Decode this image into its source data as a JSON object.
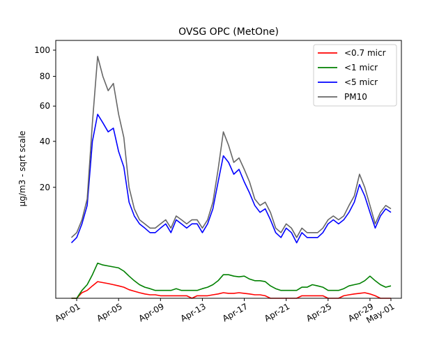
{
  "chart_data": {
    "type": "line",
    "title": "OVSG OPC (MetOne)",
    "xlabel": "",
    "ylabel": "µg/m3 - sqrt scale",
    "y_scale": "sqrt",
    "xlim": [
      "2024-03-30",
      "2024-05-02"
    ],
    "ylim": [
      0,
      108
    ],
    "x_ticks": [
      {
        "date": "2024-04-01",
        "label": "Apr-01"
      },
      {
        "date": "2024-04-05",
        "label": "Apr-05"
      },
      {
        "date": "2024-04-09",
        "label": "Apr-09"
      },
      {
        "date": "2024-04-13",
        "label": "Apr-13"
      },
      {
        "date": "2024-04-17",
        "label": "Apr-17"
      },
      {
        "date": "2024-04-21",
        "label": "Apr-21"
      },
      {
        "date": "2024-04-25",
        "label": "Apr-25"
      },
      {
        "date": "2024-04-29",
        "label": "Apr-29"
      },
      {
        "date": "2024-05-01",
        "label": "May-01"
      }
    ],
    "y_ticks": [
      20,
      40,
      60,
      80,
      100
    ],
    "legend": {
      "placement": "top-right"
    },
    "grid": false,
    "x": [
      "2024-03-31 12:00",
      "2024-04-01 00:00",
      "2024-04-01 12:00",
      "2024-04-02 00:00",
      "2024-04-02 12:00",
      "2024-04-03 00:00",
      "2024-04-03 12:00",
      "2024-04-04 00:00",
      "2024-04-04 12:00",
      "2024-04-05 00:00",
      "2024-04-05 12:00",
      "2024-04-06 00:00",
      "2024-04-06 12:00",
      "2024-04-07 00:00",
      "2024-04-07 12:00",
      "2024-04-08 00:00",
      "2024-04-08 12:00",
      "2024-04-09 00:00",
      "2024-04-09 12:00",
      "2024-04-10 00:00",
      "2024-04-10 12:00",
      "2024-04-11 00:00",
      "2024-04-11 12:00",
      "2024-04-12 00:00",
      "2024-04-12 12:00",
      "2024-04-13 00:00",
      "2024-04-13 12:00",
      "2024-04-14 00:00",
      "2024-04-14 12:00",
      "2024-04-15 00:00",
      "2024-04-15 12:00",
      "2024-04-16 00:00",
      "2024-04-16 12:00",
      "2024-04-17 00:00",
      "2024-04-17 12:00",
      "2024-04-18 00:00",
      "2024-04-18 12:00",
      "2024-04-19 00:00",
      "2024-04-19 12:00",
      "2024-04-20 00:00",
      "2024-04-20 12:00",
      "2024-04-21 00:00",
      "2024-04-21 12:00",
      "2024-04-22 00:00",
      "2024-04-22 12:00",
      "2024-04-23 00:00",
      "2024-04-23 12:00",
      "2024-04-24 00:00",
      "2024-04-24 12:00",
      "2024-04-25 00:00",
      "2024-04-25 12:00",
      "2024-04-26 00:00",
      "2024-04-26 12:00",
      "2024-04-27 00:00",
      "2024-04-27 12:00",
      "2024-04-28 00:00",
      "2024-04-28 12:00",
      "2024-04-29 00:00",
      "2024-04-29 12:00",
      "2024-04-30 00:00",
      "2024-04-30 12:00",
      "2024-05-01 00:00"
    ],
    "series": [
      {
        "name": "<0.7 micr",
        "color": "#ff0000",
        "values": [
          0.0,
          0.0,
          0.05,
          0.1,
          0.25,
          0.45,
          0.4,
          0.35,
          0.3,
          0.25,
          0.2,
          0.12,
          0.08,
          0.05,
          0.03,
          0.02,
          0.02,
          0.01,
          0.01,
          0.01,
          0.01,
          0.01,
          0.01,
          0.0,
          0.01,
          0.01,
          0.01,
          0.02,
          0.03,
          0.05,
          0.04,
          0.04,
          0.05,
          0.04,
          0.03,
          0.02,
          0.02,
          0.01,
          0.0,
          0.0,
          0.0,
          0.0,
          0.0,
          0.0,
          0.01,
          0.01,
          0.01,
          0.01,
          0.01,
          0.0,
          0.0,
          0.0,
          0.01,
          0.02,
          0.03,
          0.04,
          0.05,
          0.03,
          0.01,
          0.0,
          0.0,
          0.0
        ]
      },
      {
        "name": "<1 micr",
        "color": "#008000",
        "values": [
          0.0,
          0.0,
          0.1,
          0.3,
          0.9,
          2.0,
          1.8,
          1.7,
          1.6,
          1.5,
          1.2,
          0.8,
          0.5,
          0.3,
          0.2,
          0.15,
          0.1,
          0.1,
          0.1,
          0.1,
          0.15,
          0.1,
          0.1,
          0.1,
          0.1,
          0.15,
          0.2,
          0.3,
          0.5,
          0.9,
          0.9,
          0.8,
          0.75,
          0.8,
          0.6,
          0.5,
          0.5,
          0.45,
          0.25,
          0.15,
          0.1,
          0.1,
          0.1,
          0.1,
          0.2,
          0.2,
          0.3,
          0.25,
          0.2,
          0.1,
          0.1,
          0.1,
          0.15,
          0.25,
          0.3,
          0.35,
          0.5,
          0.8,
          0.5,
          0.3,
          0.2,
          0.25
        ]
      },
      {
        "name": "<5 micr",
        "color": "#0000ff",
        "values": [
          5,
          6,
          9,
          14,
          40,
          55,
          50,
          45,
          47,
          35,
          28,
          15,
          11,
          9,
          8,
          7,
          7,
          8,
          9,
          7,
          10,
          9,
          8,
          9,
          9,
          7,
          9,
          13,
          22,
          33,
          30,
          25,
          27,
          22,
          18,
          14,
          12,
          13,
          10,
          7,
          6,
          8,
          7,
          5,
          7,
          6,
          6,
          6,
          7,
          9,
          10,
          9,
          10,
          12,
          15,
          21,
          17,
          12,
          8,
          11,
          13,
          12
        ]
      },
      {
        "name": "PM10",
        "color": "#666666",
        "values": [
          6,
          7,
          10,
          16,
          50,
          95,
          80,
          70,
          75,
          55,
          42,
          20,
          13,
          10,
          9,
          8,
          8,
          9,
          10,
          8,
          11,
          10,
          9,
          10,
          10,
          8,
          10,
          15,
          27,
          45,
          38,
          30,
          32,
          27,
          22,
          16,
          14,
          15,
          12,
          8,
          7,
          9,
          8,
          6,
          8,
          7,
          7,
          7,
          8,
          10,
          11,
          10,
          11,
          14,
          17,
          25,
          20,
          14,
          9,
          12,
          14,
          13
        ]
      }
    ]
  }
}
